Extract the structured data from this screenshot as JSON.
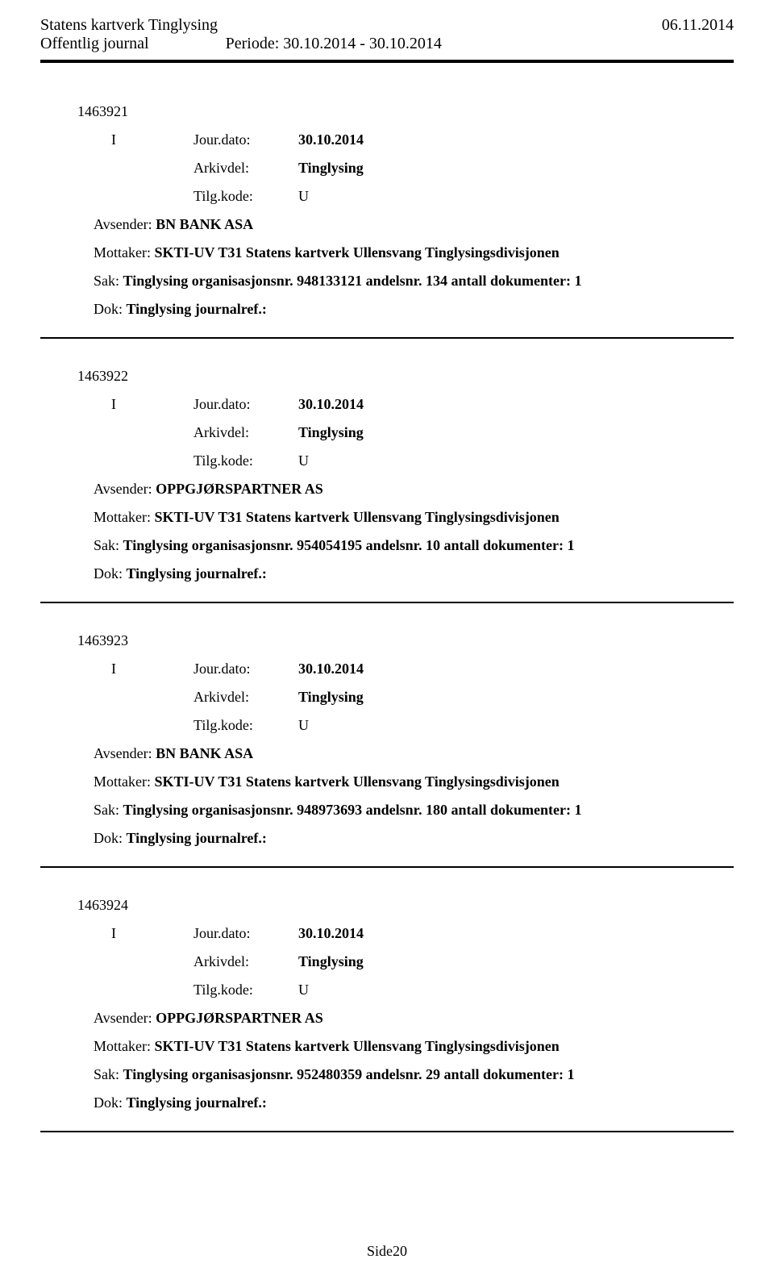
{
  "header": {
    "org": "Statens kartverk Tinglysing",
    "date": "06.11.2014",
    "journal_type": "Offentlig journal",
    "period": "Periode: 30.10.2014 - 30.10.2014"
  },
  "entries": [
    {
      "id": "1463921",
      "direction": "I",
      "jour_dato_label": "Jour.dato:",
      "jour_dato": "30.10.2014",
      "arkivdel_label": "Arkivdel:",
      "arkivdel": "Tinglysing",
      "tilg_label": "Tilg.kode:",
      "tilg": "U",
      "avsender_label": "Avsender: ",
      "avsender": "BN BANK ASA",
      "mottaker_label": "Mottaker: ",
      "mottaker": "SKTI-UV T31 Statens kartverk Ullensvang Tinglysingsdivisjonen",
      "sak_label": "Sak: ",
      "sak": "Tinglysing organisasjonsnr. 948133121 andelsnr. 134 antall dokumenter: 1",
      "dok_label": "Dok: ",
      "dok": "Tinglysing journalref.:"
    },
    {
      "id": "1463922",
      "direction": "I",
      "jour_dato_label": "Jour.dato:",
      "jour_dato": "30.10.2014",
      "arkivdel_label": "Arkivdel:",
      "arkivdel": "Tinglysing",
      "tilg_label": "Tilg.kode:",
      "tilg": "U",
      "avsender_label": "Avsender: ",
      "avsender": "OPPGJØRSPARTNER AS",
      "mottaker_label": "Mottaker: ",
      "mottaker": "SKTI-UV T31 Statens kartverk Ullensvang Tinglysingsdivisjonen",
      "sak_label": "Sak: ",
      "sak": "Tinglysing organisasjonsnr. 954054195 andelsnr. 10 antall dokumenter: 1",
      "dok_label": "Dok: ",
      "dok": "Tinglysing journalref.:"
    },
    {
      "id": "1463923",
      "direction": "I",
      "jour_dato_label": "Jour.dato:",
      "jour_dato": "30.10.2014",
      "arkivdel_label": "Arkivdel:",
      "arkivdel": "Tinglysing",
      "tilg_label": "Tilg.kode:",
      "tilg": "U",
      "avsender_label": "Avsender: ",
      "avsender": "BN BANK ASA",
      "mottaker_label": "Mottaker: ",
      "mottaker": "SKTI-UV T31 Statens kartverk Ullensvang Tinglysingsdivisjonen",
      "sak_label": "Sak: ",
      "sak": "Tinglysing organisasjonsnr. 948973693 andelsnr. 180 antall dokumenter: 1",
      "dok_label": "Dok: ",
      "dok": "Tinglysing journalref.:"
    },
    {
      "id": "1463924",
      "direction": "I",
      "jour_dato_label": "Jour.dato:",
      "jour_dato": "30.10.2014",
      "arkivdel_label": "Arkivdel:",
      "arkivdel": "Tinglysing",
      "tilg_label": "Tilg.kode:",
      "tilg": "U",
      "avsender_label": "Avsender: ",
      "avsender": "OPPGJØRSPARTNER AS",
      "mottaker_label": "Mottaker: ",
      "mottaker": "SKTI-UV T31 Statens kartverk Ullensvang Tinglysingsdivisjonen",
      "sak_label": "Sak: ",
      "sak": "Tinglysing organisasjonsnr. 952480359 andelsnr. 29 antall dokumenter: 1",
      "dok_label": "Dok: ",
      "dok": "Tinglysing journalref.:"
    }
  ],
  "footer": {
    "page": "Side20"
  }
}
